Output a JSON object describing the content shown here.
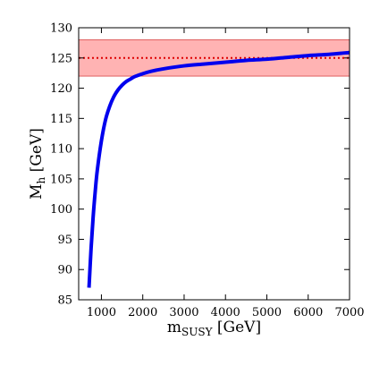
{
  "chart_data": {
    "type": "line",
    "title": "",
    "xlabel": {
      "main": "m",
      "sub": "SUSY",
      "unit": " [GeV]"
    },
    "ylabel": {
      "main": "M",
      "sub": "h",
      "unit": " [GeV]"
    },
    "xlim": [
      450,
      7000
    ],
    "ylim": [
      85,
      130
    ],
    "xticks": [
      1000,
      2000,
      3000,
      4000,
      5000,
      6000,
      7000
    ],
    "yticks": [
      85,
      90,
      95,
      100,
      105,
      110,
      115,
      120,
      125,
      130
    ],
    "grid": false,
    "band": {
      "y_low": 122,
      "y_high": 128,
      "color": "#ff9999"
    },
    "reference_line": {
      "y": 125,
      "color": "#dd0000",
      "style": "dotted"
    },
    "series": [
      {
        "color": "#0000ee",
        "x": [
          700,
          750,
          800,
          850,
          900,
          1000,
          1100,
          1200,
          1300,
          1400,
          1500,
          1600,
          1700,
          1800,
          2000,
          2200,
          2500,
          3000,
          3500,
          4000,
          4500,
          5000,
          5500,
          6000,
          6500,
          7000
        ],
        "y": [
          87.0,
          93.5,
          98.7,
          102.9,
          106.4,
          111.3,
          114.8,
          117.0,
          118.6,
          119.7,
          120.5,
          121.1,
          121.5,
          121.9,
          122.4,
          122.8,
          123.2,
          123.7,
          124.0,
          124.3,
          124.6,
          124.8,
          125.1,
          125.4,
          125.6,
          125.9
        ]
      }
    ]
  }
}
